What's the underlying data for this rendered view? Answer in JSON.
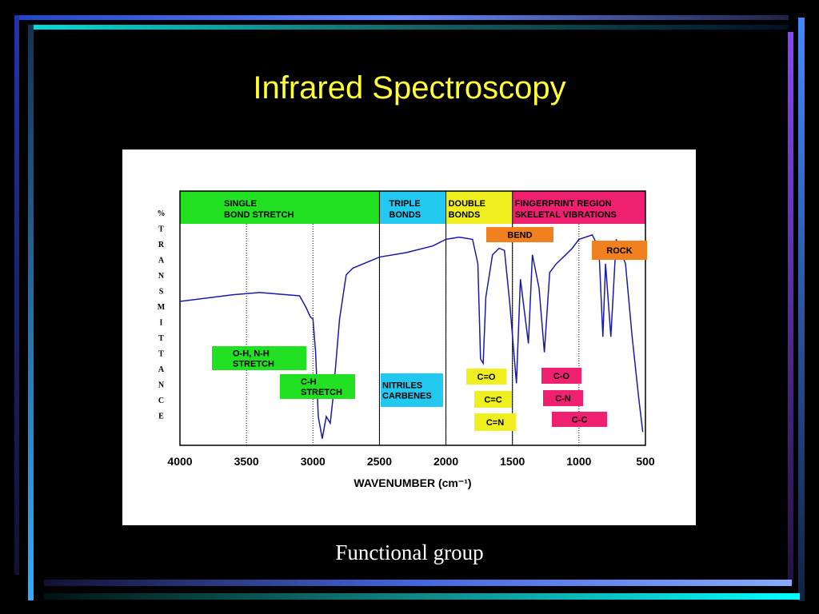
{
  "slide_title": "Infrared Spectroscopy",
  "caption": "Functional group",
  "chart_data": {
    "type": "line",
    "y_label": "%TRANSMITTANCE",
    "x_label": "WAVENUMBER (cm⁻¹)",
    "xlim": [
      4000,
      500
    ],
    "xticks": [
      4000,
      3500,
      3000,
      2500,
      2000,
      1500,
      1000,
      500
    ],
    "ylim": [
      0,
      100
    ],
    "grid": true,
    "x": [
      4000,
      3600,
      3400,
      3100,
      3050,
      3020,
      3000,
      2980,
      2960,
      2930,
      2900,
      2870,
      2850,
      2800,
      2750,
      2700,
      2500,
      2300,
      2100,
      2000,
      1900,
      1800,
      1760,
      1740,
      1720,
      1700,
      1650,
      1600,
      1560,
      1520,
      1470,
      1440,
      1380,
      1350,
      1300,
      1260,
      1220,
      1170,
      1100,
      1050,
      1000,
      900,
      850,
      820,
      800,
      760,
      720,
      650,
      600,
      550,
      520
    ],
    "series": [
      {
        "color": "#1a1aa8",
        "values": [
          65,
          68,
          69,
          67.5,
          62,
          58,
          57,
          42,
          13,
          3,
          13,
          10,
          21,
          57,
          77,
          80,
          85,
          87,
          90,
          93,
          94,
          93,
          82,
          39,
          37,
          67,
          86,
          89,
          88,
          64,
          28,
          75,
          46,
          86,
          71,
          42,
          78,
          82,
          86,
          89,
          93,
          95,
          89,
          49,
          82,
          49,
          93,
          82,
          49,
          21,
          6
        ]
      }
    ],
    "regions": [
      {
        "label": [
          "SINGLE",
          "BOND STRETCH"
        ],
        "from": 4000,
        "to": 2500,
        "color": "#22e022"
      },
      {
        "label": [
          "TRIPLE",
          "BONDS"
        ],
        "from": 2500,
        "to": 2000,
        "color": "#22c8f0"
      },
      {
        "label": [
          "DOUBLE",
          "BONDS"
        ],
        "from": 2000,
        "to": 1500,
        "color": "#f0f020"
      },
      {
        "label": [
          "FINGERPRINT REGION",
          "SKELETAL VIBRATIONS"
        ],
        "from": 1500,
        "to": 500,
        "color": "#f02070"
      }
    ],
    "annotations": [
      {
        "label": [
          "O-H, N-H",
          "STRETCH"
        ],
        "color": "#22e022"
      },
      {
        "label": [
          "C-H",
          "STRETCH"
        ],
        "color": "#22e022"
      },
      {
        "label": [
          "NITRILES",
          "CARBENES"
        ],
        "color": "#22c8f0"
      },
      {
        "label": [
          "C=O"
        ],
        "color": "#f0f020"
      },
      {
        "label": [
          "C=C"
        ],
        "color": "#f0f020"
      },
      {
        "label": [
          "C=N"
        ],
        "color": "#f0f020"
      },
      {
        "label": [
          "BEND"
        ],
        "color": "#f08020"
      },
      {
        "label": [
          "ROCK"
        ],
        "color": "#f08020"
      },
      {
        "label": [
          "C-O"
        ],
        "color": "#f02070"
      },
      {
        "label": [
          "C-N"
        ],
        "color": "#f02070"
      },
      {
        "label": [
          "C-C"
        ],
        "color": "#f02070"
      }
    ]
  }
}
